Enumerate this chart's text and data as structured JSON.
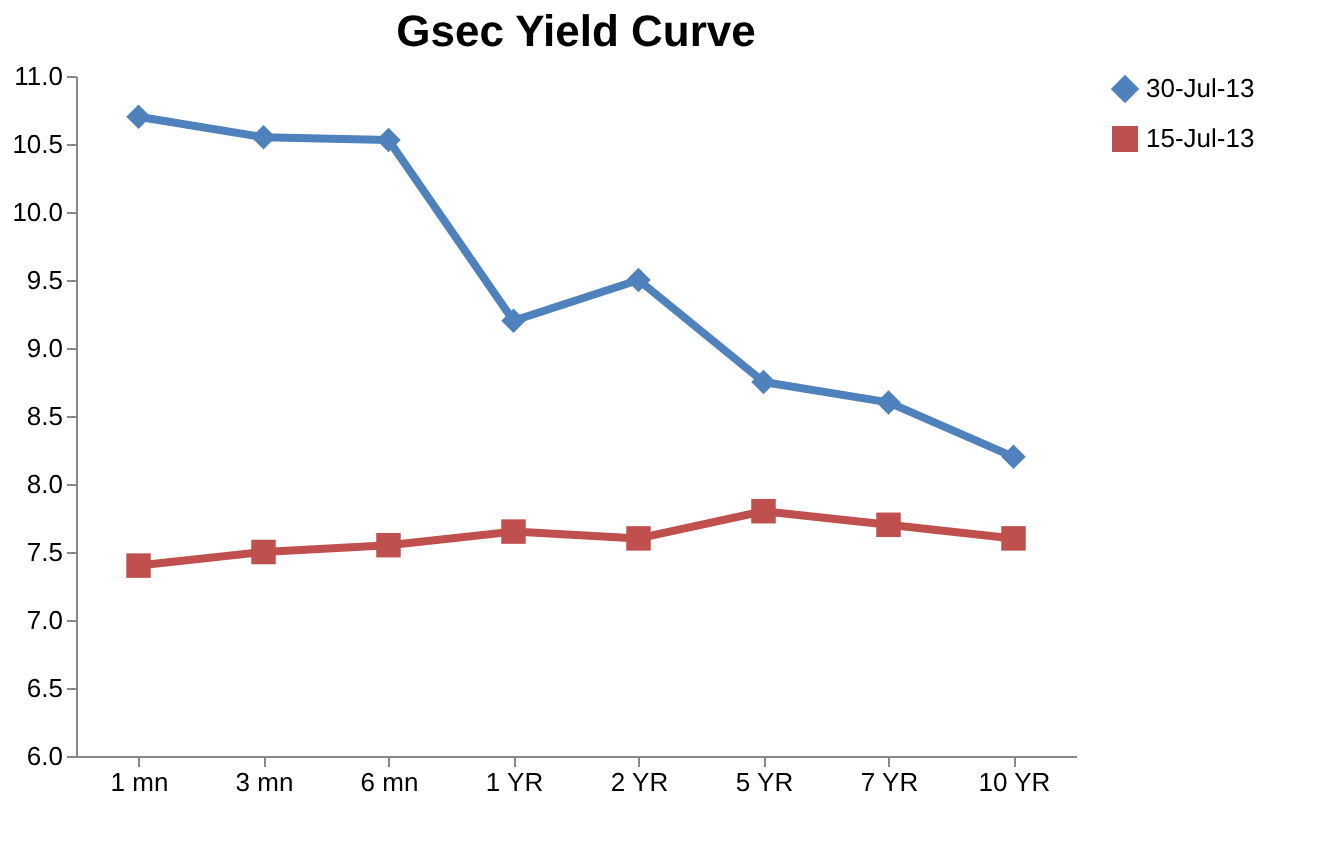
{
  "chart_data": {
    "type": "line",
    "title": "Gsec Yield Curve",
    "categories": [
      "1 mn",
      "3 mn",
      "6 mn",
      "1 YR",
      "2 YR",
      "5 YR",
      "7 YR",
      "10 YR"
    ],
    "series": [
      {
        "name": "30-Jul-13",
        "color": "#4f81bd",
        "marker": "diamond",
        "values": [
          10.7,
          10.55,
          10.53,
          9.2,
          9.5,
          8.75,
          8.6,
          8.2
        ]
      },
      {
        "name": "15-Jul-13",
        "color": "#c0504d",
        "marker": "square",
        "values": [
          7.4,
          7.5,
          7.55,
          7.65,
          7.6,
          7.8,
          7.7,
          7.6
        ]
      }
    ],
    "ylim": [
      6.0,
      11.0
    ],
    "yticks": [
      {
        "value": 6,
        "label": "6.0"
      },
      {
        "value": 6.5,
        "label": "6.5"
      },
      {
        "value": 7,
        "label": "7.0"
      },
      {
        "value": 7.5,
        "label": "7.5"
      },
      {
        "value": 8,
        "label": "8.0"
      },
      {
        "value": 8.5,
        "label": "8.5"
      },
      {
        "value": 9,
        "label": "9.0"
      },
      {
        "value": 9.5,
        "label": "9.5"
      },
      {
        "value": 10,
        "label": "10.0"
      },
      {
        "value": 10.5,
        "label": "10.5"
      },
      {
        "value": 11,
        "label": "11.0"
      }
    ],
    "grid": false,
    "legend": "right",
    "line_style": "solid"
  }
}
